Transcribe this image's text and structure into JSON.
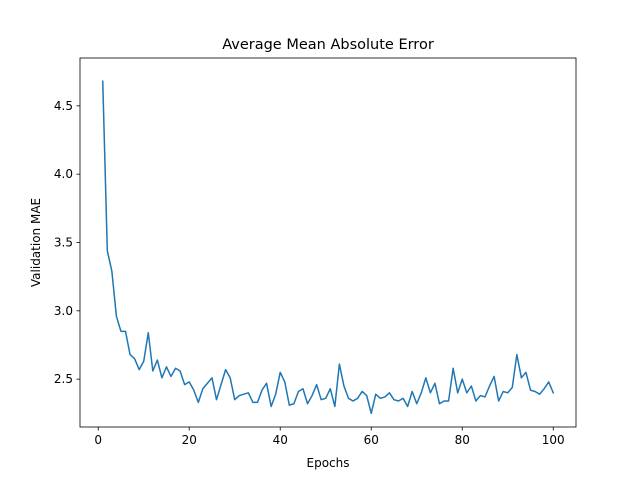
{
  "chart_data": {
    "type": "line",
    "title": "Average Mean Absolute Error",
    "xlabel": "Epochs",
    "ylabel": "Validation MAE",
    "xlim": [
      -4,
      105
    ],
    "ylim": [
      2.15,
      4.85
    ],
    "x_ticks": [
      0,
      20,
      40,
      60,
      80,
      100
    ],
    "x_tick_labels": [
      "0",
      "20",
      "40",
      "60",
      "80",
      "100"
    ],
    "y_ticks": [
      2.5,
      3.0,
      3.5,
      4.0,
      4.5
    ],
    "y_tick_labels": [
      "2.5",
      "3.0",
      "3.5",
      "4.0",
      "4.5"
    ],
    "grid": false,
    "legend": "none",
    "series": [
      {
        "color": "#1f77b4",
        "x": [
          1,
          2,
          3,
          4,
          5,
          6,
          7,
          8,
          9,
          10,
          11,
          12,
          13,
          14,
          15,
          16,
          17,
          18,
          19,
          20,
          21,
          22,
          23,
          24,
          25,
          26,
          27,
          28,
          29,
          30,
          31,
          32,
          33,
          34,
          35,
          36,
          37,
          38,
          39,
          40,
          41,
          42,
          43,
          44,
          45,
          46,
          47,
          48,
          49,
          50,
          51,
          52,
          53,
          54,
          55,
          56,
          57,
          58,
          59,
          60,
          61,
          62,
          63,
          64,
          65,
          66,
          67,
          68,
          69,
          70,
          71,
          72,
          73,
          74,
          75,
          76,
          77,
          78,
          79,
          80,
          81,
          82,
          83,
          84,
          85,
          86,
          87,
          88,
          89,
          90,
          91,
          92,
          93,
          94,
          95,
          96,
          97,
          98,
          99,
          100
        ],
        "values": [
          4.68,
          3.44,
          3.29,
          2.96,
          2.85,
          2.85,
          2.68,
          2.65,
          2.57,
          2.63,
          2.84,
          2.56,
          2.64,
          2.51,
          2.59,
          2.52,
          2.58,
          2.56,
          2.46,
          2.48,
          2.42,
          2.33,
          2.43,
          2.47,
          2.51,
          2.35,
          2.46,
          2.57,
          2.51,
          2.35,
          2.38,
          2.39,
          2.4,
          2.33,
          2.33,
          2.42,
          2.47,
          2.3,
          2.39,
          2.55,
          2.48,
          2.31,
          2.32,
          2.41,
          2.43,
          2.32,
          2.38,
          2.46,
          2.35,
          2.36,
          2.43,
          2.3,
          2.61,
          2.45,
          2.36,
          2.34,
          2.36,
          2.41,
          2.38,
          2.25,
          2.39,
          2.36,
          2.37,
          2.4,
          2.35,
          2.34,
          2.36,
          2.3,
          2.41,
          2.32,
          2.4,
          2.51,
          2.4,
          2.47,
          2.32,
          2.34,
          2.34,
          2.58,
          2.4,
          2.5,
          2.4,
          2.45,
          2.34,
          2.38,
          2.37,
          2.45,
          2.52,
          2.34,
          2.41,
          2.4,
          2.44,
          2.68,
          2.51,
          2.55,
          2.42,
          2.41,
          2.39,
          2.43,
          2.48,
          2.4
        ]
      }
    ]
  }
}
